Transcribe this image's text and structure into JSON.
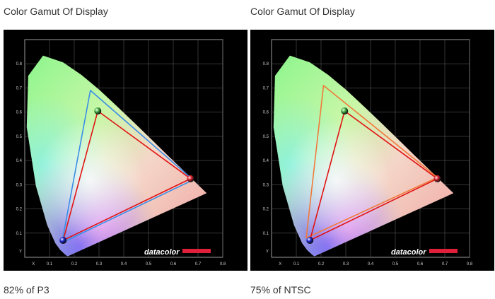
{
  "chart_data": [
    {
      "type": "scatter",
      "title": "Color Gamut Of Display",
      "caption": "82% of P3",
      "xlabel": "X",
      "ylabel": "Y",
      "x_ticks": [
        "0.1",
        "0.2",
        "0.3",
        "0.4",
        "0.5",
        "0.6",
        "0.7",
        "0.8"
      ],
      "y_ticks": [
        "0.1",
        "0.2",
        "0.3",
        "0.4",
        "0.5",
        "0.6",
        "0.7",
        "0.8"
      ],
      "xlim": [
        0,
        0.8
      ],
      "ylim": [
        0,
        0.9
      ],
      "logo": "datacolor",
      "series": [
        {
          "role": "measured",
          "color": "#e01414",
          "points": [
            [
              0.155,
              0.07
            ],
            [
              0.295,
              0.605
            ],
            [
              0.67,
              0.325
            ]
          ]
        },
        {
          "role": "reference",
          "color": "#3a8ee6",
          "points": [
            [
              0.15,
              0.06
            ],
            [
              0.265,
              0.69
            ],
            [
              0.68,
              0.32
            ]
          ]
        }
      ]
    },
    {
      "type": "scatter",
      "title": "Color Gamut Of Display",
      "caption": "75% of NTSC",
      "xlabel": "X",
      "ylabel": "Y",
      "x_ticks": [
        "0.1",
        "0.2",
        "0.3",
        "0.4",
        "0.5",
        "0.6",
        "0.7",
        "0.8"
      ],
      "y_ticks": [
        "0.1",
        "0.2",
        "0.3",
        "0.4",
        "0.5",
        "0.6",
        "0.7",
        "0.8"
      ],
      "xlim": [
        0,
        0.8
      ],
      "ylim": [
        0,
        0.9
      ],
      "logo": "datacolor",
      "series": [
        {
          "role": "measured",
          "color": "#e01414",
          "points": [
            [
              0.155,
              0.07
            ],
            [
              0.295,
              0.605
            ],
            [
              0.67,
              0.325
            ]
          ]
        },
        {
          "role": "reference",
          "color": "#f07a3a",
          "points": [
            [
              0.14,
              0.08
            ],
            [
              0.21,
              0.71
            ],
            [
              0.67,
              0.33
            ]
          ]
        }
      ]
    }
  ]
}
